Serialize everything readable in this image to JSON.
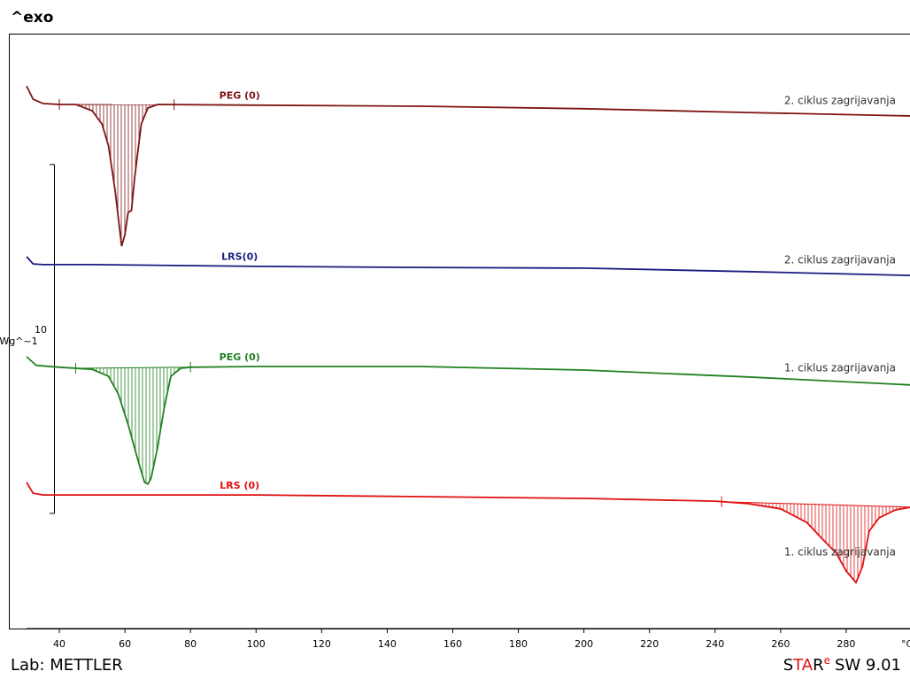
{
  "chart_data": {
    "type": "line",
    "header": "^exo",
    "footer_left": "Lab: METTLER",
    "brand": {
      "parts": [
        "S",
        "TA",
        "R"
      ],
      "sup": "e",
      "version": "SW 9.01"
    },
    "x_unit": "°C",
    "xlim": [
      30,
      300
    ],
    "xticks": [
      40,
      60,
      80,
      100,
      120,
      140,
      160,
      180,
      200,
      220,
      240,
      260,
      280
    ],
    "ylim": [
      0,
      17
    ],
    "scale_bar": {
      "base": 3.3,
      "value": 10,
      "unit": "Wg^~1"
    },
    "series": [
      {
        "name": "PEG (0)",
        "color": "#7f1414",
        "annotation": "2. ciklus zagrijavanja",
        "integration": [
          40,
          75
        ],
        "x": [
          30,
          32,
          35,
          40,
          45,
          50,
          53,
          55,
          57,
          59,
          60,
          61,
          62,
          63,
          65,
          67,
          70,
          100,
          150,
          200,
          250,
          300
        ],
        "values": [
          15.55,
          15.17,
          15.05,
          15.02,
          15.02,
          14.84,
          14.46,
          13.83,
          12.56,
          10.96,
          11.29,
          11.93,
          11.98,
          12.94,
          14.46,
          14.92,
          15.02,
          15.0,
          14.97,
          14.9,
          14.79,
          14.69
        ]
      },
      {
        "name": "LRS(0)",
        "color": "#1a1a80",
        "annotation": "2. ciklus zagrijavanja",
        "x": [
          30,
          32,
          35,
          50,
          100,
          150,
          200,
          250,
          300
        ],
        "values": [
          10.66,
          10.45,
          10.43,
          10.43,
          10.38,
          10.35,
          10.33,
          10.23,
          10.12
        ]
      },
      {
        "name": "PEG (0)",
        "color": "#208020",
        "annotation": "1. ciklus zagrijavanja",
        "integration": [
          45,
          80
        ],
        "x": [
          30,
          33,
          40,
          50,
          55,
          58,
          61,
          64,
          66,
          67,
          68,
          70,
          72,
          74,
          77,
          80,
          100,
          150,
          200,
          250,
          300
        ],
        "values": [
          7.79,
          7.54,
          7.49,
          7.43,
          7.23,
          6.72,
          5.84,
          4.82,
          4.19,
          4.14,
          4.31,
          5.2,
          6.34,
          7.23,
          7.46,
          7.49,
          7.51,
          7.51,
          7.41,
          7.21,
          6.98
        ]
      },
      {
        "name": "LRS (0)",
        "color": "#e01010",
        "annotation": "1. ciklus zagrijavanja",
        "integration": [
          242,
          300
        ],
        "x": [
          30,
          32,
          35,
          100,
          150,
          200,
          240,
          250,
          260,
          268,
          273,
          277,
          280,
          283,
          285,
          287,
          290,
          295,
          300
        ],
        "values": [
          4.19,
          3.88,
          3.83,
          3.83,
          3.78,
          3.73,
          3.65,
          3.58,
          3.43,
          3.04,
          2.54,
          2.16,
          1.65,
          1.32,
          1.78,
          2.79,
          3.17,
          3.4,
          3.48
        ]
      }
    ]
  }
}
